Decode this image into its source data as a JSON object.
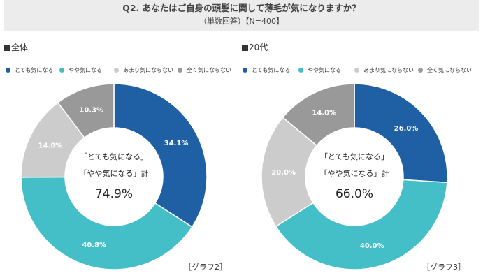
{
  "header": {
    "title": "Q2. あなたはご自身の頭髪に関して薄毛が気になりますか？",
    "subtitle": "（単数回答）【N=400】"
  },
  "legend": [
    {
      "label": "とても気になる",
      "color": "#1f5fa3"
    },
    {
      "label": "やや気になる",
      "color": "#45bfc7"
    },
    {
      "label": "あまり気にならない",
      "color": "#cccccc"
    },
    {
      "label": "全く気にならない",
      "color": "#999999"
    }
  ],
  "chart_data": [
    {
      "type": "pie",
      "title": "全体",
      "categories": [
        "とても気になる",
        "やや気になる",
        "あまり気にならない",
        "全く気にならない"
      ],
      "values": [
        34.1,
        40.8,
        14.8,
        10.3
      ],
      "labels": [
        "34.1%",
        "40.8%",
        "14.8%",
        "10.3%"
      ],
      "colors": [
        "#1f5fa3",
        "#45bfc7",
        "#cccccc",
        "#999999"
      ],
      "center_text": [
        "「とても気になる」",
        "「やや気になる」計",
        "74.9%"
      ],
      "tag": "［グラフ2］"
    },
    {
      "type": "pie",
      "title": "20代",
      "categories": [
        "とても気になる",
        "やや気になる",
        "あまり気にならない",
        "全く気にならない"
      ],
      "values": [
        26.0,
        40.0,
        20.0,
        14.0
      ],
      "labels": [
        "26.0%",
        "40.0%",
        "20.0%",
        "14.0%"
      ],
      "colors": [
        "#1f5fa3",
        "#45bfc7",
        "#cccccc",
        "#999999"
      ],
      "center_text": [
        "「とても気になる」",
        "「やや気になる」計",
        "66.0%"
      ],
      "tag": "［グラフ3］"
    }
  ]
}
